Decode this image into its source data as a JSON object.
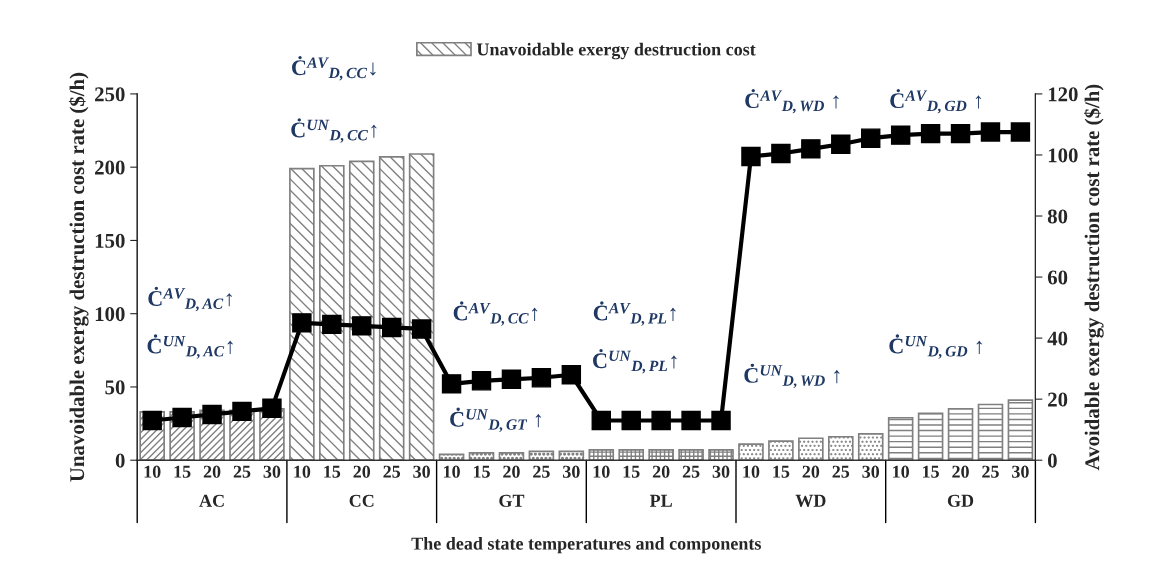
{
  "chart_data": {
    "type": "bar",
    "xlabel": "The dead state temperatures and components",
    "ylabel": "Unavoidable exergy destruction cost rate ($/h)",
    "y2label": "Avoidable exergy destruction cost rate ($/h)",
    "categories": [
      "10",
      "15",
      "20",
      "25",
      "30",
      "10",
      "15",
      "20",
      "25",
      "30",
      "10",
      "15",
      "20",
      "25",
      "30",
      "10",
      "15",
      "20",
      "25",
      "30",
      "10",
      "15",
      "20",
      "25",
      "30",
      "10",
      "15",
      "20",
      "25",
      "30"
    ],
    "series": [
      {
        "name": "Unavoidable exergy destruction cost",
        "color": "#808080",
        "values": [
          33,
          33,
          34,
          34,
          35,
          199,
          201,
          204,
          207,
          209,
          4,
          5,
          5,
          6,
          6,
          7,
          7,
          7,
          7,
          7,
          11,
          13,
          15,
          16,
          18,
          29,
          32,
          35,
          38,
          41
        ]
      },
      {
        "type": "line",
        "axis": "y2",
        "color": "#000000",
        "marker": "square",
        "values": [
          13,
          14,
          15,
          16,
          17,
          45,
          44.5,
          44,
          43.5,
          43,
          25,
          26,
          26.5,
          27,
          28,
          13,
          13,
          13,
          13,
          13,
          99.5,
          100.5,
          102,
          103.5,
          105.5,
          106.5,
          107,
          107,
          107.5,
          107.5
        ]
      }
    ],
    "ylim": [
      0,
      250
    ],
    "yticks": [
      0,
      50,
      100,
      150,
      200,
      250
    ],
    "y2lim": [
      0,
      120
    ],
    "y2ticks": [
      0,
      20,
      40,
      60,
      80,
      100,
      120
    ],
    "legend": "top",
    "grid": false,
    "annotations": [
      "Ċ$^{AV}$$_{D,AC}$↑",
      "Ċ$^{UN}$$_{D,AC}$↑",
      "Ċ$^{AV}$$_{D,CC}$↓",
      "Ċ$^{UN}$$_{D,CC}$↑",
      "Ċ$^{AV}$$_{D,CC}$↑",
      "Ċ$^{UN}$$_{D,GT}$ ↑",
      "Ċ$^{AV}$$_{D,PL}$↑",
      "Ċ$^{UN}$$_{D,PL}$↑",
      "Ċ$^{AV}$$_{D,WD}$ ↑",
      "Ċ$^{UN}$$_{D,WD}$ ↑",
      "Ċ$^{AV}$$_{D,GD}$ ↑",
      "Ċ$^{UN}$$_{D,GD}$ ↑",
      "AC",
      "CC",
      "GT",
      "PL",
      "WD",
      "GD"
    ]
  }
}
